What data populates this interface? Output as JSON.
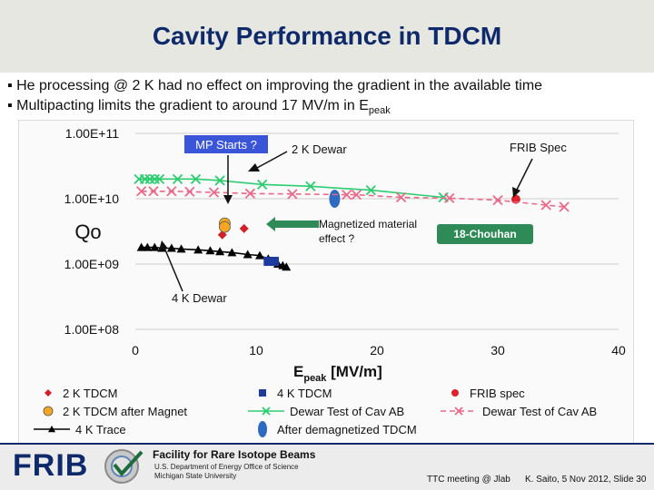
{
  "slide": {
    "title": "Cavity Performance in TDCM",
    "bullets": [
      {
        "text": "▪ He processing @ 2 K had no effect on improving the gradient in the available time",
        "sub": ""
      },
      {
        "text": "▪ Multipacting limits the gradient to around 17 MV/m in E",
        "sub": "peak"
      }
    ]
  },
  "footer": {
    "logo": "FRIB",
    "facility": "Facility for Rare Isotope Beams",
    "line1": "U.S. Department of Energy Office of Science",
    "line2": "Michigan State University",
    "meeting": "TTC meeting @ Jlab",
    "author": "K. Saito, 5 Nov 2012,  Slide 30"
  },
  "colors": {
    "title": "#0f2a6b",
    "green": "#2ecc71",
    "pink": "#e86a8a",
    "red": "#d0202a",
    "navy": "#1f3a9e",
    "orange": "#f5a623",
    "black": "#000000",
    "annotation_green": "#2e8b57"
  },
  "chart_data": {
    "type": "scatter",
    "ylabel": "Qo",
    "xlabel": "E",
    "xlabel_sub": "peak",
    "xlabel_unit": " [MV/m]",
    "yscale": "log",
    "xlim": [
      0,
      40
    ],
    "ylim": [
      100000000,
      100000000000
    ],
    "xticks": [
      {
        "value": 0,
        "label": "0"
      },
      {
        "value": 10,
        "label": "10"
      },
      {
        "value": 20,
        "label": "20"
      },
      {
        "value": 30,
        "label": "30"
      },
      {
        "value": 40,
        "label": "40"
      }
    ],
    "yticks": [
      {
        "value": 100000000,
        "label": "1.00E+08"
      },
      {
        "value": 1000000000,
        "label": "1.00E+09"
      },
      {
        "value": 10000000000,
        "label": "1.00E+10"
      },
      {
        "value": 100000000000,
        "label": "1.00E+11"
      }
    ],
    "grid": true,
    "annotations": {
      "mp_starts": "MP Starts ?",
      "dewar2k": "2 K Dewar",
      "frib_spec": "FRIB Spec",
      "magnetized_1": "Magnetized material",
      "magnetized_2": "effect ?",
      "chouhan": "18-Chouhan",
      "dewar4k": "4 K Dewar"
    },
    "series": [
      {
        "name": "2 K TDCM",
        "marker": "diamond",
        "color": "#d0202a",
        "line": false,
        "points": [
          [
            7.2,
            2800000000
          ],
          [
            9.0,
            3500000000
          ]
        ]
      },
      {
        "name": "2 K TDCM after Magnet",
        "marker": "circle",
        "color": "#f5a623",
        "line": false,
        "points": [
          [
            7.4,
            4200000000
          ],
          [
            7.4,
            3700000000
          ]
        ]
      },
      {
        "name": "4 K Trace",
        "marker": "triangle",
        "color": "#000000",
        "line": true,
        "points": [
          [
            0.5,
            1800000000
          ],
          [
            1.0,
            1800000000
          ],
          [
            1.6,
            1800000000
          ],
          [
            2.2,
            1750000000
          ],
          [
            3.0,
            1750000000
          ],
          [
            3.8,
            1700000000
          ],
          [
            5.2,
            1650000000
          ],
          [
            6.2,
            1600000000
          ],
          [
            7.0,
            1550000000
          ],
          [
            8.0,
            1500000000
          ],
          [
            9.3,
            1400000000
          ],
          [
            10.3,
            1350000000
          ],
          [
            11.0,
            1200000000
          ],
          [
            11.8,
            1000000000
          ],
          [
            12.2,
            950000000
          ],
          [
            12.5,
            900000000
          ]
        ]
      },
      {
        "name": "4 K TDCM",
        "marker": "square",
        "color": "#1f3a9e",
        "line": false,
        "points": [
          [
            11.0,
            1100000000
          ],
          [
            11.5,
            1100000000
          ]
        ]
      },
      {
        "name": "Dewar Test of Cav AB",
        "marker": "x",
        "color": "#2ecc71",
        "line": true,
        "points": [
          [
            0.3,
            20000000000
          ],
          [
            0.8,
            20000000000
          ],
          [
            1.2,
            20000000000
          ],
          [
            1.6,
            20000000000
          ],
          [
            2.0,
            20000000000
          ],
          [
            3.5,
            20000000000
          ],
          [
            5.0,
            20000000000
          ],
          [
            7.0,
            19000000000
          ],
          [
            10.5,
            16500000000
          ],
          [
            14.5,
            15500000000
          ],
          [
            19.5,
            13500000000
          ],
          [
            25.5,
            10500000000
          ]
        ]
      },
      {
        "name": "After demagnetized TDCM",
        "marker": "ellipse",
        "color": "#2e6bc0",
        "line": false,
        "points": [
          [
            16.5,
            10000000000
          ]
        ]
      },
      {
        "name": "FRIB spec",
        "marker": "dot",
        "color": "#e0202a",
        "line": false,
        "points": [
          [
            31.5,
            9800000000
          ]
        ]
      },
      {
        "name": "Dewar Test of Cav AB",
        "marker": "x",
        "color": "#e86a8a",
        "line": true,
        "dashed": true,
        "points": [
          [
            0.5,
            13000000000
          ],
          [
            1.5,
            13000000000
          ],
          [
            3.0,
            13000000000
          ],
          [
            4.5,
            12800000000
          ],
          [
            6.5,
            12500000000
          ],
          [
            9.5,
            12000000000
          ],
          [
            13.0,
            11800000000
          ],
          [
            17.5,
            11500000000
          ],
          [
            18.3,
            11500000000
          ],
          [
            22.0,
            10500000000
          ],
          [
            26.0,
            10200000000
          ],
          [
            30.0,
            9500000000
          ],
          [
            34.0,
            8000000000
          ],
          [
            35.5,
            7500000000
          ]
        ]
      }
    ]
  }
}
